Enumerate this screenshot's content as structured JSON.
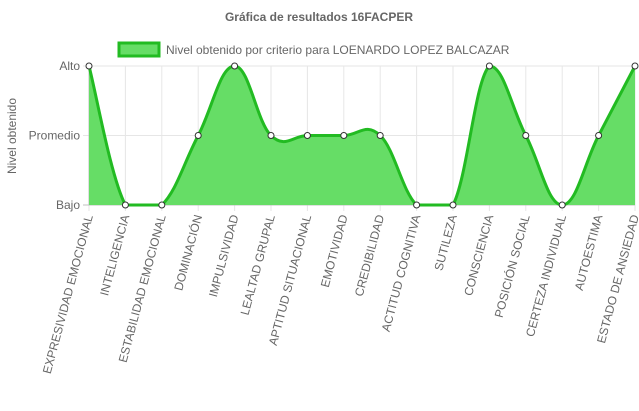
{
  "chart_data": {
    "type": "area",
    "title": "Gráfica de resultados 16FACPER",
    "ylabel": "Nivel obtenido",
    "xlabel": "",
    "y_levels": [
      "Bajo",
      "Promedio",
      "Alto"
    ],
    "ylim": [
      0,
      2
    ],
    "categories": [
      "EXPRESIVIDAD EMOCIONAL",
      "INTELIGENCIA",
      "ESTABILIDAD EMOCIONAL",
      "DOMINACIÓN",
      "IMPULSIVIDAD",
      "LEALTAD GRUPAL",
      "APTITUD SITUACIONAL",
      "EMOTIVIDAD",
      "CREDIBILIDAD",
      "ACTITUD COGNITIVA",
      "SUTILEZA",
      "CONSCIENCIA",
      "POSICIÓN SOCIAL",
      "CERTEZA INDIVIDUAL",
      "AUTOESTIMA",
      "ESTADO DE ANSIEDAD"
    ],
    "series": [
      {
        "name": "Nivel obtenido por criterio para LOENARDO LOPEZ BALCAZAR",
        "values": [
          2,
          0,
          0,
          1,
          2,
          1,
          1,
          1,
          1,
          0,
          0,
          2,
          1,
          0,
          1,
          2
        ]
      }
    ],
    "grid": true,
    "legend_position": "top",
    "colors": {
      "fill": "#66dd66",
      "stroke": "#22bb22",
      "grid": "#e6e6e6",
      "axis": "#c0c0c0",
      "point_fill": "#ffffff",
      "point_stroke": "#333333"
    }
  }
}
